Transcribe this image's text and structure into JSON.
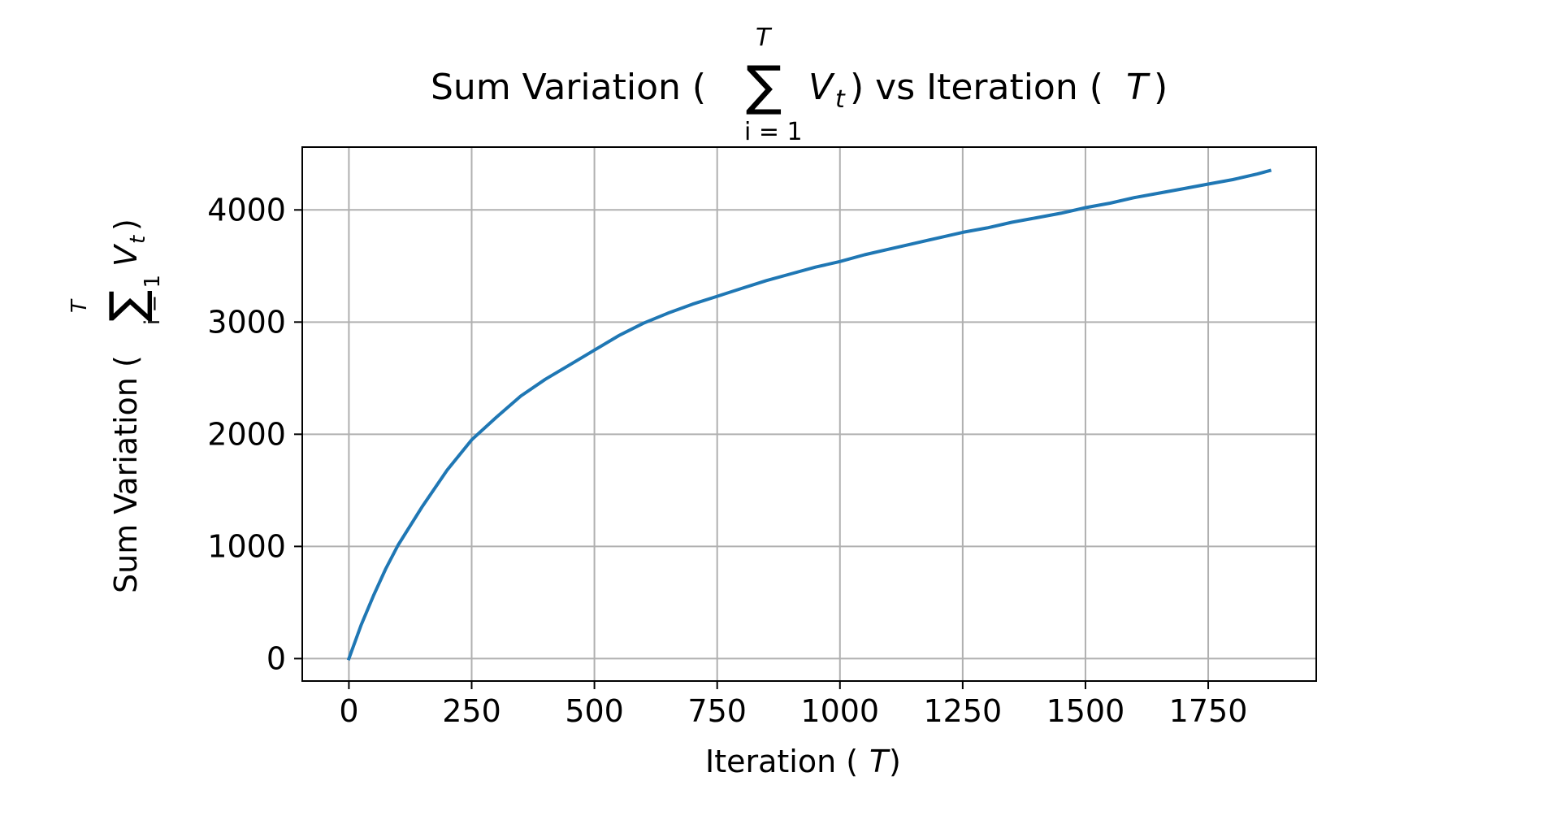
{
  "chart_data": {
    "type": "line",
    "title": {
      "prefix": "Sum Variation (",
      "sum_symbol": "∑",
      "sum_upper": "T",
      "sum_lower": "i = 1",
      "term": "V",
      "term_sub": "t",
      "suffix": ") vs Iteration (",
      "var": "T",
      "close": ")"
    },
    "xlabel": {
      "text": "Iteration (",
      "var": "T",
      "close": ")"
    },
    "ylabel": {
      "prefix": "Sum Variation (",
      "sum_symbol": "∑",
      "sum_upper": "T",
      "sum_lower": "i = 1",
      "term": "V",
      "term_sub": "t",
      "close": ")"
    },
    "xlim": [
      -95,
      1970
    ],
    "ylim": [
      -200,
      4560
    ],
    "x_ticks": [
      0,
      250,
      500,
      750,
      1000,
      1250,
      1500,
      1750
    ],
    "y_ticks": [
      0,
      1000,
      2000,
      3000,
      4000
    ],
    "grid": true,
    "line_color": "#1f77b4",
    "grid_color": "#b0b0b0",
    "series": [
      {
        "x": [
          0,
          25,
          50,
          75,
          100,
          150,
          200,
          250,
          300,
          350,
          400,
          450,
          500,
          550,
          600,
          650,
          700,
          750,
          800,
          850,
          900,
          950,
          1000,
          1050,
          1100,
          1150,
          1200,
          1250,
          1300,
          1350,
          1400,
          1450,
          1500,
          1550,
          1600,
          1650,
          1700,
          1750,
          1800,
          1850,
          1875
        ],
        "y": [
          0,
          300,
          560,
          800,
          1010,
          1360,
          1680,
          1950,
          2150,
          2340,
          2490,
          2620,
          2750,
          2880,
          2990,
          3080,
          3160,
          3230,
          3300,
          3370,
          3430,
          3490,
          3540,
          3600,
          3650,
          3700,
          3750,
          3800,
          3840,
          3890,
          3930,
          3970,
          4020,
          4060,
          4110,
          4150,
          4190,
          4230,
          4270,
          4320,
          4350
        ]
      }
    ]
  }
}
